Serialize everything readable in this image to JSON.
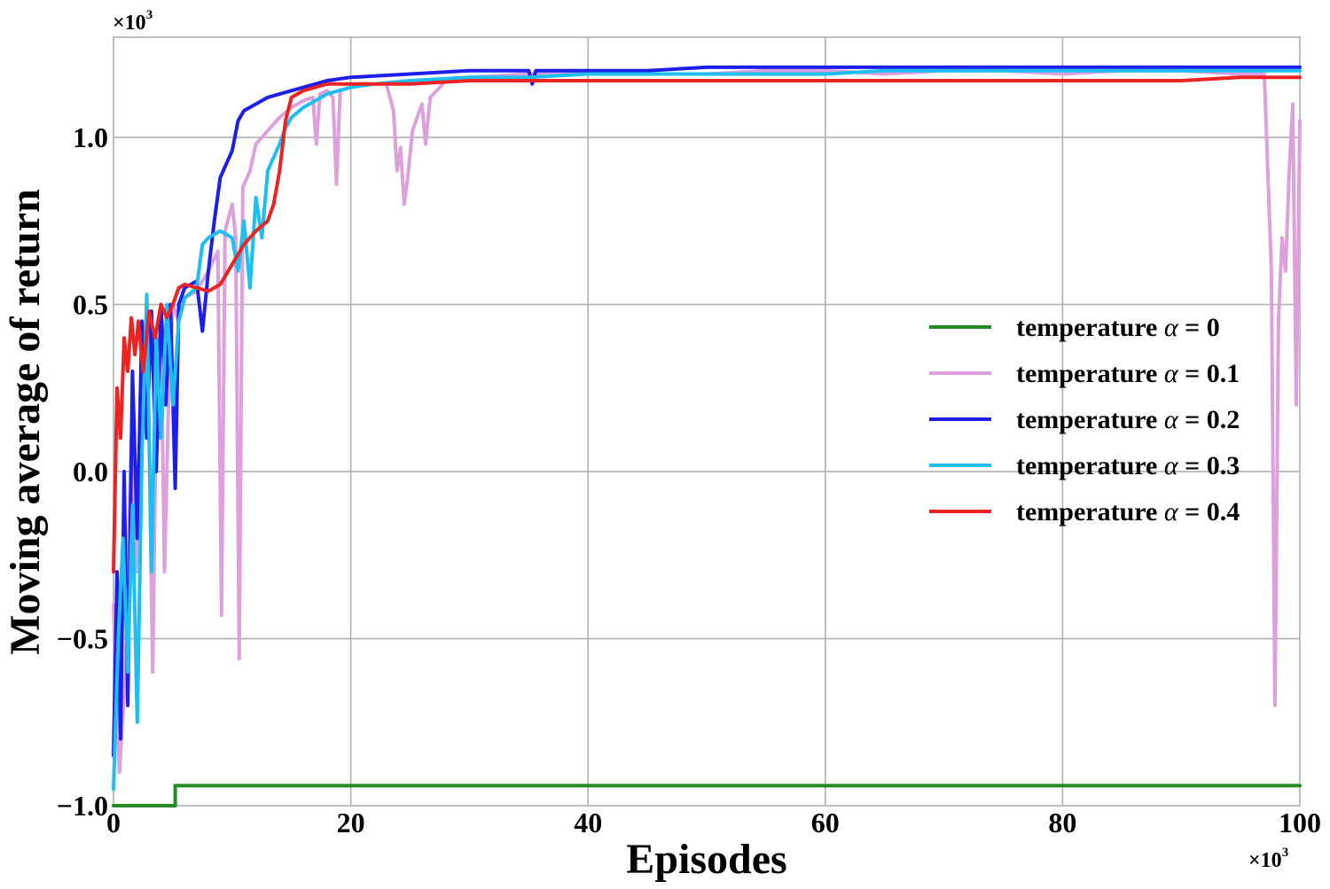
{
  "chart_data": {
    "type": "line",
    "xlabel": "Episodes",
    "ylabel": "Moving average of return",
    "x_multiplier": "×10",
    "x_multiplier_exp": "3",
    "y_multiplier": "×10",
    "y_multiplier_exp": "3",
    "xlim": [
      0,
      100
    ],
    "ylim": [
      -1.0,
      1.3
    ],
    "x_ticks": [
      0,
      20,
      40,
      60,
      80,
      100
    ],
    "x_tick_labels": [
      "0",
      "20",
      "40",
      "60",
      "80",
      "100"
    ],
    "y_ticks": [
      -1.0,
      -0.5,
      0.0,
      0.5,
      1.0
    ],
    "y_tick_labels": [
      "−1.0",
      "−0.5",
      "0.0",
      "0.5",
      "1.0"
    ],
    "grid": true,
    "legend_position": "center-right",
    "series": [
      {
        "name": "temperature α = 0",
        "label_prefix": "temperature ",
        "label_symbol": "α",
        "label_suffix": " = 0",
        "color": "#228B22",
        "points": [
          [
            0,
            -1.0
          ],
          [
            5.2,
            -1.0
          ],
          [
            5.2,
            -0.94
          ],
          [
            100,
            -0.94
          ]
        ]
      },
      {
        "name": "temperature α = 0.1",
        "label_prefix": "temperature ",
        "label_symbol": "α",
        "label_suffix": " = 0.1",
        "color": "#DDA0DD",
        "points": [
          [
            0,
            -0.4
          ],
          [
            0.5,
            -0.9
          ],
          [
            1,
            -0.6
          ],
          [
            1.5,
            0.1
          ],
          [
            2,
            -0.3
          ],
          [
            2.5,
            0.4
          ],
          [
            3,
            0.1
          ],
          [
            3.3,
            -0.6
          ],
          [
            3.6,
            0.2
          ],
          [
            4,
            0.45
          ],
          [
            4.3,
            -0.3
          ],
          [
            4.7,
            0.3
          ],
          [
            5,
            0.5
          ],
          [
            5.5,
            0.45
          ],
          [
            6,
            0.52
          ],
          [
            7,
            0.54
          ],
          [
            8,
            0.6
          ],
          [
            8.8,
            0.66
          ],
          [
            9.1,
            -0.43
          ],
          [
            9.4,
            0.72
          ],
          [
            10,
            0.8
          ],
          [
            10.3,
            0.7
          ],
          [
            10.6,
            -0.56
          ],
          [
            10.9,
            0.85
          ],
          [
            11.5,
            0.9
          ],
          [
            12,
            0.98
          ],
          [
            12.5,
            1.0
          ],
          [
            13,
            1.02
          ],
          [
            14,
            1.06
          ],
          [
            15,
            1.09
          ],
          [
            16,
            1.11
          ],
          [
            16.8,
            1.12
          ],
          [
            17.1,
            0.98
          ],
          [
            17.4,
            1.13
          ],
          [
            18,
            1.14
          ],
          [
            18.5,
            1.12
          ],
          [
            18.8,
            0.86
          ],
          [
            19.1,
            1.14
          ],
          [
            20,
            1.15
          ],
          [
            21,
            1.16
          ],
          [
            22,
            1.16
          ],
          [
            23,
            1.16
          ],
          [
            23.6,
            1.08
          ],
          [
            23.9,
            0.9
          ],
          [
            24.2,
            0.97
          ],
          [
            24.5,
            0.8
          ],
          [
            24.8,
            0.88
          ],
          [
            25.2,
            1.02
          ],
          [
            25.6,
            1.06
          ],
          [
            26,
            1.1
          ],
          [
            26.3,
            0.98
          ],
          [
            26.7,
            1.12
          ],
          [
            27.5,
            1.15
          ],
          [
            28,
            1.17
          ],
          [
            30,
            1.18
          ],
          [
            35,
            1.19
          ],
          [
            40,
            1.19
          ],
          [
            45,
            1.19
          ],
          [
            50,
            1.19
          ],
          [
            55,
            1.2
          ],
          [
            60,
            1.2
          ],
          [
            65,
            1.19
          ],
          [
            70,
            1.2
          ],
          [
            75,
            1.2
          ],
          [
            80,
            1.19
          ],
          [
            85,
            1.2
          ],
          [
            90,
            1.2
          ],
          [
            95,
            1.19
          ],
          [
            97,
            1.19
          ],
          [
            97.6,
            0.6
          ],
          [
            97.9,
            -0.7
          ],
          [
            98.2,
            0.45
          ],
          [
            98.5,
            0.7
          ],
          [
            98.8,
            0.6
          ],
          [
            99.1,
            0.9
          ],
          [
            99.4,
            1.1
          ],
          [
            99.7,
            0.2
          ],
          [
            100,
            1.05
          ]
        ]
      },
      {
        "name": "temperature α = 0.2",
        "label_prefix": "temperature ",
        "label_symbol": "α",
        "label_suffix": " = 0.2",
        "color": "#1E1EEB",
        "points": [
          [
            0,
            -0.85
          ],
          [
            0.3,
            -0.3
          ],
          [
            0.6,
            -0.8
          ],
          [
            0.9,
            0.0
          ],
          [
            1.2,
            -0.7
          ],
          [
            1.6,
            0.3
          ],
          [
            2,
            -0.2
          ],
          [
            2.4,
            0.45
          ],
          [
            2.8,
            0.1
          ],
          [
            3.2,
            0.48
          ],
          [
            3.6,
            0.0
          ],
          [
            4,
            0.5
          ],
          [
            4.4,
            0.2
          ],
          [
            4.8,
            0.5
          ],
          [
            5.2,
            -0.05
          ],
          [
            5.5,
            0.5
          ],
          [
            6,
            0.55
          ],
          [
            7,
            0.57
          ],
          [
            7.5,
            0.42
          ],
          [
            8,
            0.6
          ],
          [
            8.5,
            0.75
          ],
          [
            9,
            0.88
          ],
          [
            9.5,
            0.92
          ],
          [
            10,
            0.96
          ],
          [
            10.5,
            1.05
          ],
          [
            11,
            1.08
          ],
          [
            12,
            1.1
          ],
          [
            13,
            1.12
          ],
          [
            14,
            1.13
          ],
          [
            15,
            1.14
          ],
          [
            16,
            1.15
          ],
          [
            18,
            1.17
          ],
          [
            20,
            1.18
          ],
          [
            25,
            1.19
          ],
          [
            30,
            1.2
          ],
          [
            35,
            1.2
          ],
          [
            35.3,
            1.16
          ],
          [
            35.6,
            1.2
          ],
          [
            40,
            1.2
          ],
          [
            45,
            1.2
          ],
          [
            50,
            1.21
          ],
          [
            55,
            1.21
          ],
          [
            60,
            1.21
          ],
          [
            65,
            1.21
          ],
          [
            70,
            1.21
          ],
          [
            75,
            1.21
          ],
          [
            80,
            1.21
          ],
          [
            85,
            1.21
          ],
          [
            90,
            1.21
          ],
          [
            95,
            1.21
          ],
          [
            100,
            1.21
          ]
        ]
      },
      {
        "name": "temperature α = 0.3",
        "label_prefix": "temperature ",
        "label_symbol": "α",
        "label_suffix": " = 0.3",
        "color": "#1EBEF0",
        "points": [
          [
            0,
            -0.95
          ],
          [
            0.4,
            -0.5
          ],
          [
            0.8,
            -0.2
          ],
          [
            1.2,
            -0.6
          ],
          [
            1.6,
            -0.1
          ],
          [
            2,
            -0.75
          ],
          [
            2.4,
            0.05
          ],
          [
            2.8,
            0.53
          ],
          [
            3.2,
            -0.3
          ],
          [
            3.6,
            0.4
          ],
          [
            4,
            0.1
          ],
          [
            4.5,
            0.5
          ],
          [
            5,
            0.2
          ],
          [
            5.5,
            0.45
          ],
          [
            6,
            0.52
          ],
          [
            7,
            0.55
          ],
          [
            7.5,
            0.68
          ],
          [
            8,
            0.7
          ],
          [
            9,
            0.72
          ],
          [
            10,
            0.7
          ],
          [
            10.5,
            0.6
          ],
          [
            11,
            0.75
          ],
          [
            11.5,
            0.55
          ],
          [
            12,
            0.82
          ],
          [
            12.5,
            0.7
          ],
          [
            13,
            0.9
          ],
          [
            14,
            0.98
          ],
          [
            14.5,
            1.03
          ],
          [
            15,
            1.06
          ],
          [
            16,
            1.09
          ],
          [
            17,
            1.11
          ],
          [
            18,
            1.13
          ],
          [
            20,
            1.15
          ],
          [
            22,
            1.16
          ],
          [
            25,
            1.17
          ],
          [
            30,
            1.18
          ],
          [
            35,
            1.18
          ],
          [
            40,
            1.19
          ],
          [
            45,
            1.19
          ],
          [
            50,
            1.19
          ],
          [
            55,
            1.19
          ],
          [
            60,
            1.19
          ],
          [
            65,
            1.2
          ],
          [
            70,
            1.2
          ],
          [
            75,
            1.2
          ],
          [
            80,
            1.2
          ],
          [
            85,
            1.2
          ],
          [
            90,
            1.2
          ],
          [
            95,
            1.2
          ],
          [
            100,
            1.2
          ]
        ]
      },
      {
        "name": "temperature α = 0.4",
        "label_prefix": "temperature ",
        "label_symbol": "α",
        "label_suffix": " = 0.4",
        "color": "#EB2323",
        "points": [
          [
            0,
            -0.3
          ],
          [
            0.3,
            0.25
          ],
          [
            0.6,
            0.1
          ],
          [
            0.9,
            0.4
          ],
          [
            1.2,
            0.3
          ],
          [
            1.5,
            0.46
          ],
          [
            1.8,
            0.35
          ],
          [
            2.1,
            0.45
          ],
          [
            2.5,
            0.3
          ],
          [
            3,
            0.48
          ],
          [
            3.5,
            0.4
          ],
          [
            4,
            0.5
          ],
          [
            4.5,
            0.46
          ],
          [
            5,
            0.5
          ],
          [
            5.5,
            0.55
          ],
          [
            6,
            0.56
          ],
          [
            7,
            0.55
          ],
          [
            8,
            0.54
          ],
          [
            9,
            0.56
          ],
          [
            10,
            0.62
          ],
          [
            11,
            0.68
          ],
          [
            12,
            0.72
          ],
          [
            13,
            0.75
          ],
          [
            13.5,
            0.8
          ],
          [
            14,
            0.9
          ],
          [
            14.5,
            1.05
          ],
          [
            15,
            1.12
          ],
          [
            16,
            1.14
          ],
          [
            17,
            1.15
          ],
          [
            18,
            1.16
          ],
          [
            20,
            1.16
          ],
          [
            25,
            1.16
          ],
          [
            30,
            1.17
          ],
          [
            35,
            1.17
          ],
          [
            40,
            1.17
          ],
          [
            45,
            1.17
          ],
          [
            50,
            1.17
          ],
          [
            55,
            1.17
          ],
          [
            60,
            1.17
          ],
          [
            65,
            1.17
          ],
          [
            70,
            1.17
          ],
          [
            75,
            1.17
          ],
          [
            80,
            1.17
          ],
          [
            85,
            1.17
          ],
          [
            90,
            1.17
          ],
          [
            95,
            1.18
          ],
          [
            100,
            1.18
          ]
        ]
      }
    ]
  }
}
